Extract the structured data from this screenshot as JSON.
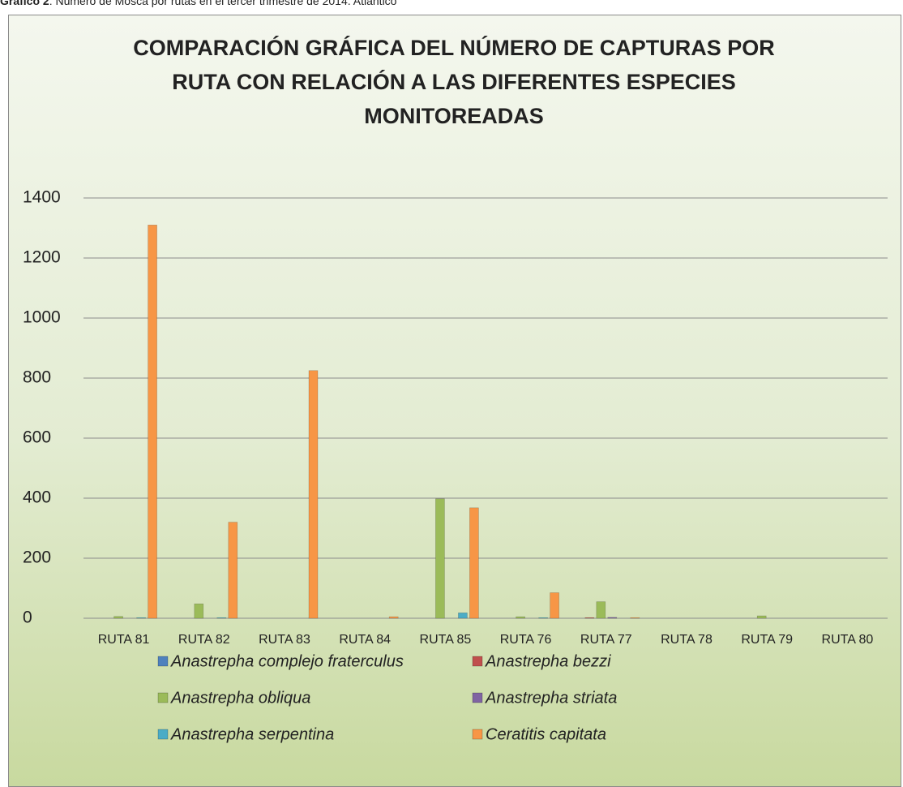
{
  "chart_data": {
    "type": "bar",
    "caption_label": "Gráfico 2",
    "caption": ": Número de Mosca por rutas en el tercer trimestre de 2014. Atlántico",
    "title": "COMPARACIÓN GRÁFICA DEL NÚMERO DE CAPTURAS POR RUTA CON RELACIÓN A LAS DIFERENTES ESPECIES MONITOREADAS",
    "categories": [
      "RUTA 81",
      "RUTA 82",
      "RUTA 83",
      "RUTA 84",
      "RUTA 85",
      "RUTA 76",
      "RUTA 77",
      "RUTA 78",
      "RUTA 79",
      "RUTA 80"
    ],
    "series": [
      {
        "name": "Anastrepha complejo fraterculus",
        "color": "#4f81bd",
        "values": [
          0,
          0,
          0,
          0,
          0,
          0,
          0,
          0,
          0,
          0
        ]
      },
      {
        "name": "Anastrepha bezzi",
        "color": "#c0504d",
        "values": [
          0,
          0,
          0,
          0,
          0,
          0,
          2,
          0,
          0,
          0
        ]
      },
      {
        "name": "Anastrepha obliqua",
        "color": "#9bbb59",
        "values": [
          6,
          48,
          0,
          0,
          398,
          5,
          55,
          0,
          8,
          0
        ]
      },
      {
        "name": "Anastrepha striata",
        "color": "#8064a2",
        "values": [
          0,
          0,
          0,
          0,
          0,
          0,
          3,
          0,
          0,
          0
        ]
      },
      {
        "name": "Anastrepha serpentina",
        "color": "#4bacc6",
        "values": [
          2,
          2,
          0,
          0,
          18,
          2,
          0,
          0,
          0,
          0
        ]
      },
      {
        "name": "Ceratitis capitata",
        "color": "#f79646",
        "values": [
          1310,
          320,
          825,
          5,
          368,
          85,
          2,
          0,
          0,
          0
        ]
      }
    ],
    "ylim": [
      0,
      1400
    ],
    "yticks": [
      0,
      200,
      400,
      600,
      800,
      1000,
      1200,
      1400
    ],
    "grid": true,
    "legend": "bottom"
  }
}
